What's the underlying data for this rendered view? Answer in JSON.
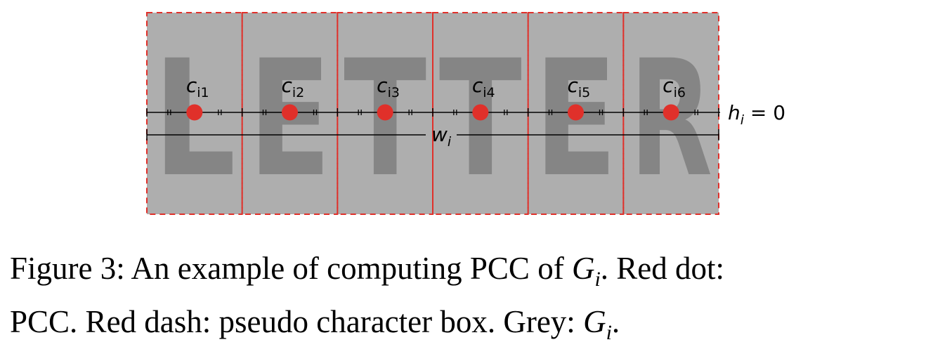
{
  "figure": {
    "word": "LETTER",
    "letters": [
      "L",
      "E",
      "T",
      "T",
      "E",
      "R"
    ],
    "centers": [
      {
        "base": "c",
        "sub": "i1"
      },
      {
        "base": "c",
        "sub": "i2"
      },
      {
        "base": "c",
        "sub": "i3"
      },
      {
        "base": "c",
        "sub": "i4"
      },
      {
        "base": "c",
        "sub": "i5"
      },
      {
        "base": "c",
        "sub": "i6"
      }
    ],
    "width_label": {
      "base": "w",
      "sub": "i"
    },
    "height_label": {
      "base": "h",
      "sub": "i",
      "rest": " = 0"
    },
    "colors": {
      "box_fill": "#aeaeae",
      "letter_fill": "#858585",
      "dash": "#e0302a",
      "dot": "#e0302a",
      "line": "#000000"
    }
  },
  "caption": {
    "line1_a": "Figure 3: An example of computing PCC of ",
    "line1_math": "G",
    "line1_sub": "i",
    "line1_b": ". Red dot:",
    "line2_a": "PCC. Red dash: pseudo character box. Grey: ",
    "line2_math": "G",
    "line2_sub": "i",
    "line2_b": "."
  }
}
